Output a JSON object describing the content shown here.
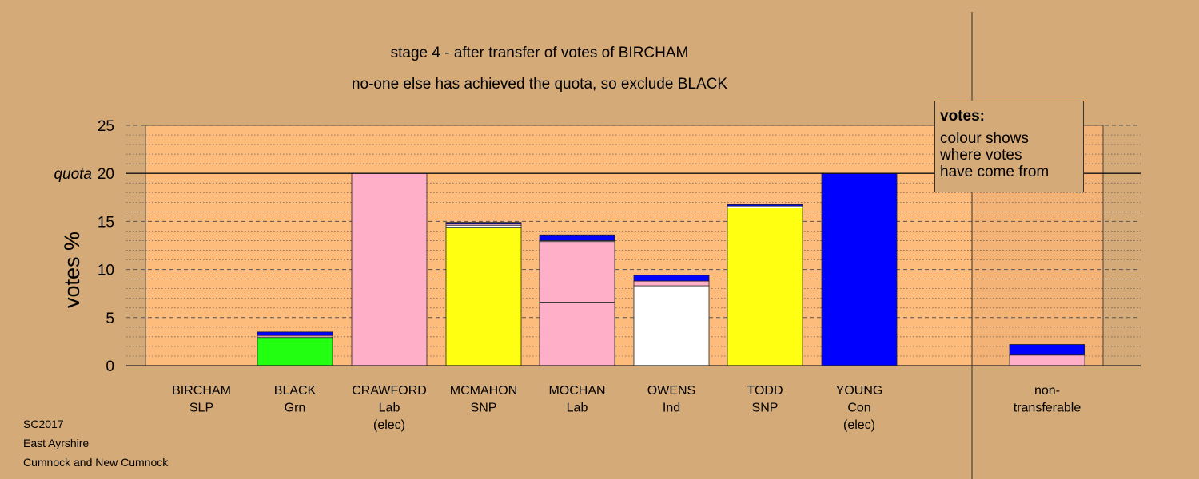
{
  "titles": {
    "line1": "stage 4 - after transfer of votes of BIRCHAM",
    "line2": "no-one else has achieved the quota, so exclude BLACK"
  },
  "legend": {
    "title": "votes:",
    "line1": "colour shows",
    "line2": "where votes",
    "line3": "have come from"
  },
  "footer": {
    "line1": "SC2017",
    "line2": "East Ayrshire",
    "line3": "Cumnock and New Cumnock"
  },
  "chart_data": {
    "type": "bar",
    "stacked": true,
    "ylabel": "votes %",
    "ylim": [
      0,
      25
    ],
    "yticks": [
      0,
      5,
      10,
      15,
      20,
      25
    ],
    "quota": {
      "value": 20,
      "label": "quota"
    },
    "grid": "dashed major lines every 5, dotted minor lines every 1",
    "colors": {
      "pink": "#ffb0c8",
      "green": "#22ff11",
      "yellow": "#ffff11",
      "white": "#ffffff",
      "blue": "#0000ff",
      "navy": "#000088",
      "plot_bg": "#fdbb7c",
      "page_bg": "#d4aa78"
    },
    "categories": [
      {
        "lines": [
          "BIRCHAM",
          "SLP"
        ],
        "segments": []
      },
      {
        "lines": [
          "BLACK",
          "Grn"
        ],
        "segments": [
          {
            "value": 2.85,
            "color": "#22ff11"
          },
          {
            "value": 0.12,
            "color": "#ffffff"
          },
          {
            "value": 0.17,
            "color": "#ffb0c8"
          },
          {
            "value": 0.36,
            "color": "#0000ff"
          }
        ]
      },
      {
        "lines": [
          "CRAWFORD",
          "Lab",
          "(elec)"
        ],
        "segments": [
          {
            "value": 20.0,
            "color": "#ffb0c8"
          }
        ]
      },
      {
        "lines": [
          "MCMAHON",
          "SNP"
        ],
        "segments": [
          {
            "value": 14.4,
            "color": "#ffff11"
          },
          {
            "value": 0.2,
            "color": "#ffffff"
          },
          {
            "value": 0.2,
            "color": "#ffb0c8"
          },
          {
            "value": 0.1,
            "color": "#0000ff"
          }
        ]
      },
      {
        "lines": [
          "MOCHAN",
          "Lab"
        ],
        "segments": [
          {
            "value": 6.6,
            "color": "#ffb0c8"
          },
          {
            "value": 6.3,
            "color": "#ffb0c8"
          },
          {
            "value": 0.1,
            "color": "#ffffff"
          },
          {
            "value": 0.6,
            "color": "#0000ff"
          }
        ]
      },
      {
        "lines": [
          "OWENS",
          "Ind"
        ],
        "segments": [
          {
            "value": 8.3,
            "color": "#ffffff"
          },
          {
            "value": 0.5,
            "color": "#ffb0c8"
          },
          {
            "value": 0.6,
            "color": "#0000ff"
          }
        ]
      },
      {
        "lines": [
          "TODD",
          "SNP"
        ],
        "segments": [
          {
            "value": 16.4,
            "color": "#ffff11"
          },
          {
            "value": 0.2,
            "color": "#ffffff"
          },
          {
            "value": 0.15,
            "color": "#0000ff"
          }
        ]
      },
      {
        "lines": [
          "YOUNG",
          "Con",
          "(elec)"
        ],
        "segments": [
          {
            "value": 20.0,
            "color": "#0000ff"
          }
        ]
      }
    ],
    "nontransferable": {
      "lines": [
        "non-",
        "transferable"
      ],
      "segments": [
        {
          "value": 1.1,
          "color": "#ffb0c8"
        },
        {
          "value": 1.1,
          "color": "#0000ff"
        }
      ]
    }
  }
}
